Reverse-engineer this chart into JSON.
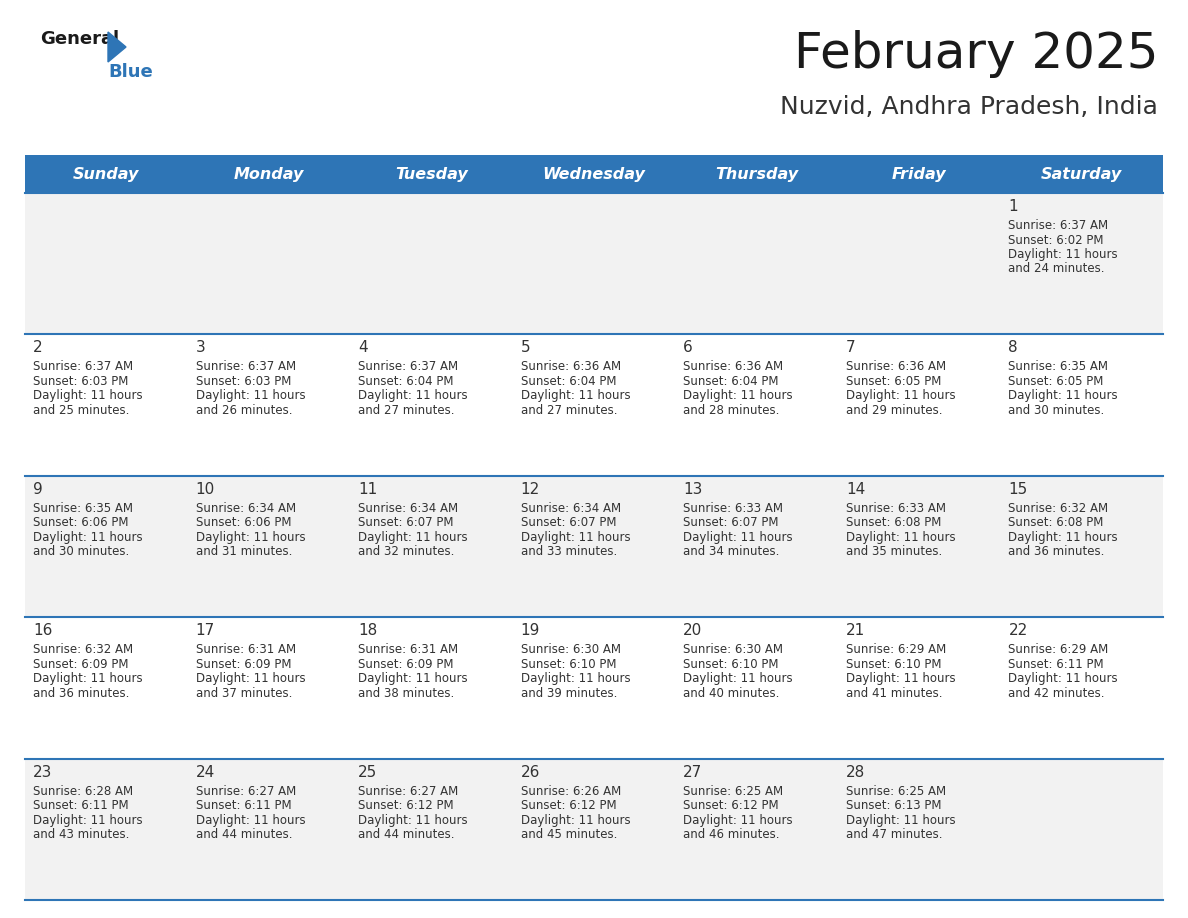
{
  "title": "February 2025",
  "subtitle": "Nuzvid, Andhra Pradesh, India",
  "header_color": "#2E75B6",
  "header_text_color": "#FFFFFF",
  "day_headers": [
    "Sunday",
    "Monday",
    "Tuesday",
    "Wednesday",
    "Thursday",
    "Friday",
    "Saturday"
  ],
  "background_color": "#FFFFFF",
  "cell_bg_even": "#F2F2F2",
  "cell_bg_odd": "#FFFFFF",
  "row_line_color": "#2E75B6",
  "text_color": "#333333",
  "days": [
    {
      "day": 1,
      "col": 6,
      "row": 0,
      "sunrise": "6:37 AM",
      "sunset": "6:02 PM",
      "daylight_suffix": "24 minutes."
    },
    {
      "day": 2,
      "col": 0,
      "row": 1,
      "sunrise": "6:37 AM",
      "sunset": "6:03 PM",
      "daylight_suffix": "25 minutes."
    },
    {
      "day": 3,
      "col": 1,
      "row": 1,
      "sunrise": "6:37 AM",
      "sunset": "6:03 PM",
      "daylight_suffix": "26 minutes."
    },
    {
      "day": 4,
      "col": 2,
      "row": 1,
      "sunrise": "6:37 AM",
      "sunset": "6:04 PM",
      "daylight_suffix": "27 minutes."
    },
    {
      "day": 5,
      "col": 3,
      "row": 1,
      "sunrise": "6:36 AM",
      "sunset": "6:04 PM",
      "daylight_suffix": "27 minutes."
    },
    {
      "day": 6,
      "col": 4,
      "row": 1,
      "sunrise": "6:36 AM",
      "sunset": "6:04 PM",
      "daylight_suffix": "28 minutes."
    },
    {
      "day": 7,
      "col": 5,
      "row": 1,
      "sunrise": "6:36 AM",
      "sunset": "6:05 PM",
      "daylight_suffix": "29 minutes."
    },
    {
      "day": 8,
      "col": 6,
      "row": 1,
      "sunrise": "6:35 AM",
      "sunset": "6:05 PM",
      "daylight_suffix": "30 minutes."
    },
    {
      "day": 9,
      "col": 0,
      "row": 2,
      "sunrise": "6:35 AM",
      "sunset": "6:06 PM",
      "daylight_suffix": "30 minutes."
    },
    {
      "day": 10,
      "col": 1,
      "row": 2,
      "sunrise": "6:34 AM",
      "sunset": "6:06 PM",
      "daylight_suffix": "31 minutes."
    },
    {
      "day": 11,
      "col": 2,
      "row": 2,
      "sunrise": "6:34 AM",
      "sunset": "6:07 PM",
      "daylight_suffix": "32 minutes."
    },
    {
      "day": 12,
      "col": 3,
      "row": 2,
      "sunrise": "6:34 AM",
      "sunset": "6:07 PM",
      "daylight_suffix": "33 minutes."
    },
    {
      "day": 13,
      "col": 4,
      "row": 2,
      "sunrise": "6:33 AM",
      "sunset": "6:07 PM",
      "daylight_suffix": "34 minutes."
    },
    {
      "day": 14,
      "col": 5,
      "row": 2,
      "sunrise": "6:33 AM",
      "sunset": "6:08 PM",
      "daylight_suffix": "35 minutes."
    },
    {
      "day": 15,
      "col": 6,
      "row": 2,
      "sunrise": "6:32 AM",
      "sunset": "6:08 PM",
      "daylight_suffix": "36 minutes."
    },
    {
      "day": 16,
      "col": 0,
      "row": 3,
      "sunrise": "6:32 AM",
      "sunset": "6:09 PM",
      "daylight_suffix": "36 minutes."
    },
    {
      "day": 17,
      "col": 1,
      "row": 3,
      "sunrise": "6:31 AM",
      "sunset": "6:09 PM",
      "daylight_suffix": "37 minutes."
    },
    {
      "day": 18,
      "col": 2,
      "row": 3,
      "sunrise": "6:31 AM",
      "sunset": "6:09 PM",
      "daylight_suffix": "38 minutes."
    },
    {
      "day": 19,
      "col": 3,
      "row": 3,
      "sunrise": "6:30 AM",
      "sunset": "6:10 PM",
      "daylight_suffix": "39 minutes."
    },
    {
      "day": 20,
      "col": 4,
      "row": 3,
      "sunrise": "6:30 AM",
      "sunset": "6:10 PM",
      "daylight_suffix": "40 minutes."
    },
    {
      "day": 21,
      "col": 5,
      "row": 3,
      "sunrise": "6:29 AM",
      "sunset": "6:10 PM",
      "daylight_suffix": "41 minutes."
    },
    {
      "day": 22,
      "col": 6,
      "row": 3,
      "sunrise": "6:29 AM",
      "sunset": "6:11 PM",
      "daylight_suffix": "42 minutes."
    },
    {
      "day": 23,
      "col": 0,
      "row": 4,
      "sunrise": "6:28 AM",
      "sunset": "6:11 PM",
      "daylight_suffix": "43 minutes."
    },
    {
      "day": 24,
      "col": 1,
      "row": 4,
      "sunrise": "6:27 AM",
      "sunset": "6:11 PM",
      "daylight_suffix": "44 minutes."
    },
    {
      "day": 25,
      "col": 2,
      "row": 4,
      "sunrise": "6:27 AM",
      "sunset": "6:12 PM",
      "daylight_suffix": "44 minutes."
    },
    {
      "day": 26,
      "col": 3,
      "row": 4,
      "sunrise": "6:26 AM",
      "sunset": "6:12 PM",
      "daylight_suffix": "45 minutes."
    },
    {
      "day": 27,
      "col": 4,
      "row": 4,
      "sunrise": "6:25 AM",
      "sunset": "6:12 PM",
      "daylight_suffix": "46 minutes."
    },
    {
      "day": 28,
      "col": 5,
      "row": 4,
      "sunrise": "6:25 AM",
      "sunset": "6:13 PM",
      "daylight_suffix": "47 minutes."
    }
  ],
  "num_rows": 5,
  "title_fontsize": 36,
  "subtitle_fontsize": 18,
  "header_fontsize": 11.5,
  "daynum_fontsize": 11,
  "cell_fontsize": 8.5
}
